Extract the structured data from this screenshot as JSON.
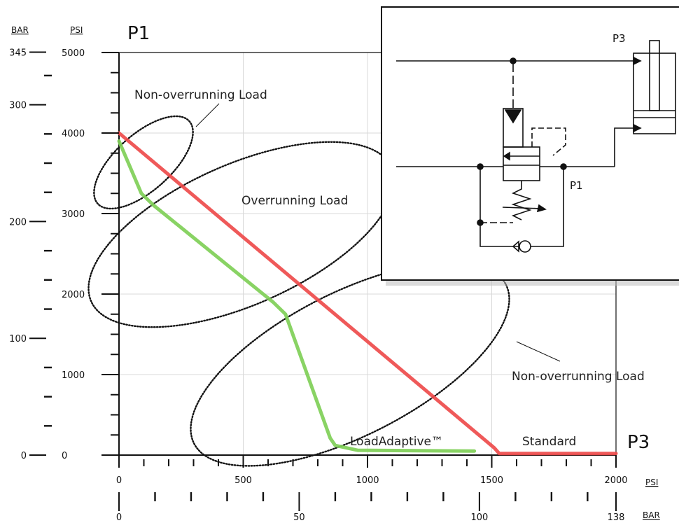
{
  "chart_data": {
    "type": "line",
    "title": "",
    "y_title": "P1",
    "x_title": "P3",
    "y_units": {
      "left": "BAR",
      "right": "PSI"
    },
    "x_units": {
      "top": "PSI",
      "bottom": "BAR"
    },
    "xlim": [
      0,
      2000
    ],
    "ylim": [
      0,
      5000
    ],
    "x_ticks_psi": [
      "0",
      "500",
      "1000",
      "1500",
      "2000"
    ],
    "x_ticks_bar": [
      "0",
      "50",
      "100",
      "138"
    ],
    "y_ticks_psi": [
      "0",
      "1000",
      "2000",
      "3000",
      "4000",
      "5000"
    ],
    "y_ticks_bar": [
      "0",
      "100",
      "200",
      "300",
      "345"
    ],
    "grid": true,
    "series": [
      {
        "name": "Standard",
        "color": "#ee4b4b",
        "x": [
          0,
          1510,
          1530,
          2000
        ],
        "y": [
          4000,
          90,
          20,
          20
        ]
      },
      {
        "name": "LoadAdaptive™",
        "color": "#7fcf57",
        "x": [
          0,
          90,
          140,
          620,
          670,
          850,
          870,
          960,
          1430
        ],
        "y": [
          3900,
          3250,
          3100,
          1900,
          1750,
          210,
          120,
          60,
          50
        ]
      }
    ],
    "annotations": [
      "Non-overrunning Load",
      "Overrunning Load",
      "Non-overrunning Load"
    ],
    "inset_labels": [
      "P3",
      "P1"
    ]
  }
}
